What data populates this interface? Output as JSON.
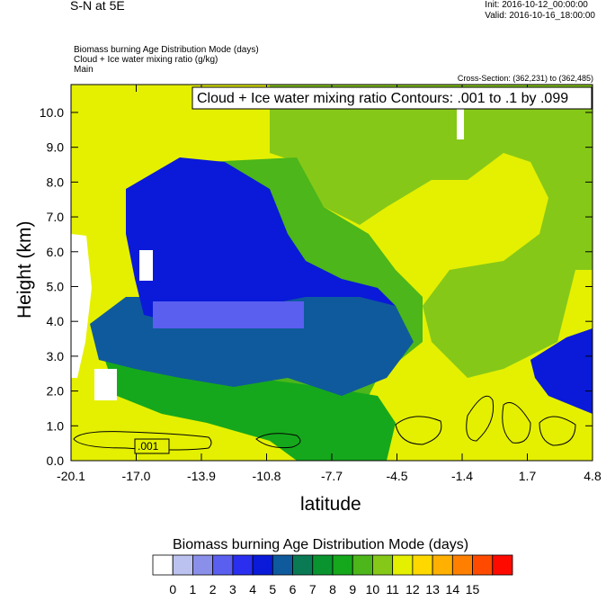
{
  "header": {
    "title": "S-N at 5E",
    "init": "Init: 2016-10-12_00:00:00",
    "valid": "Valid: 2016-10-16_18:00:00",
    "field1": "Biomass burning Age Distribution Mode   (days)",
    "field2": "Cloud + Ice water mixing ratio   (g/kg)",
    "field3": "Main",
    "cross_section": "Cross-Section: (362,231) to (362,485)"
  },
  "chart_data": {
    "type": "heatmap",
    "title": "",
    "xlabel": "latitude",
    "ylabel": "Height (km)",
    "xlim": [
      -20.1,
      4.8
    ],
    "ylim": [
      0.0,
      10.8
    ],
    "x_ticks": [
      "-20.1",
      "-17.0",
      "-13.9",
      "-10.8",
      "-7.7",
      "-4.5",
      "-1.4",
      "1.7",
      "4.8"
    ],
    "y_ticks": [
      "0.0",
      "1.0",
      "2.0",
      "3.0",
      "4.0",
      "5.0",
      "6.0",
      "7.0",
      "8.0",
      "9.0",
      "10.0"
    ],
    "contour_annotation": "Cloud + Ice water mixing ratio Contours: .001 to .1 by .099",
    "contour_label": ".001",
    "colorbar": {
      "title": "Biomass burning Age Distribution Mode  (days)",
      "labels": [
        "0",
        "1",
        "2",
        "3",
        "4",
        "5",
        "6",
        "7",
        "8",
        "9",
        "10",
        "11",
        "12",
        "13",
        "14",
        "15"
      ],
      "colors": [
        "#ffffff",
        "#bcc2f0",
        "#8a90ea",
        "#5a5ff0",
        "#2a2eee",
        "#0a1ad8",
        "#0f5a9c",
        "#0a7a55",
        "#0a9430",
        "#16a81c",
        "#4cb61a",
        "#86c818",
        "#e4f000",
        "#ffd800",
        "#ffb000",
        "#ff8000",
        "#ff4a00",
        "#ff0a00"
      ]
    },
    "regions": [
      {
        "name": "yellow-background",
        "value": 12
      },
      {
        "name": "green-upper-right",
        "value": 11
      },
      {
        "name": "green-mid",
        "value": 9
      },
      {
        "name": "blue-core",
        "value": 4
      },
      {
        "name": "light-blue-band",
        "value": 3
      },
      {
        "name": "dark-teal-layer",
        "value": 6
      },
      {
        "name": "green-low",
        "value": 8
      },
      {
        "name": "right-blue-patch",
        "value": 4
      }
    ]
  }
}
